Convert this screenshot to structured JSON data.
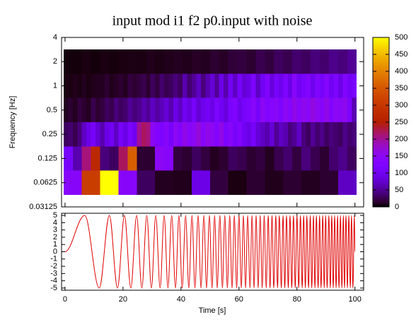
{
  "chart_data": [
    {
      "type": "heatmap",
      "title": "input mod i1 f2 p0.input with noise",
      "ylabel": "Frequency [Hz]",
      "xlim": [
        -1.2,
        103
      ],
      "ylim": [
        0.03125,
        4
      ],
      "log_y": true,
      "yticks": [
        0.03125,
        0.0625,
        0.125,
        0.25,
        0.5,
        1,
        2,
        4
      ],
      "x_extent": [
        -0.5,
        100.5
      ],
      "colormap": "gnuplot",
      "colorbar": {
        "clim": [
          0,
          500
        ],
        "ticks": [
          0,
          50,
          100,
          150,
          200,
          250,
          300,
          350,
          400,
          450,
          500
        ]
      },
      "rows": [
        {
          "y": 2,
          "values": [
            3,
            3,
            5,
            3,
            5,
            4,
            5,
            6,
            5,
            8,
            6,
            8,
            10,
            8,
            12,
            10,
            15,
            12,
            18,
            20,
            15,
            25,
            20,
            30,
            25,
            35,
            30,
            40,
            35,
            45,
            40,
            50
          ]
        },
        {
          "y": 1,
          "values": [
            5,
            5,
            8,
            5,
            10,
            5,
            8,
            10,
            10,
            15,
            8,
            12,
            15,
            10,
            20,
            15,
            20,
            25,
            15,
            30,
            20,
            35,
            25,
            30,
            40,
            30,
            60,
            35,
            50,
            70,
            40,
            60,
            80,
            50,
            90,
            60,
            100,
            70,
            110,
            80,
            90,
            120,
            70,
            100,
            130,
            85,
            110,
            95,
            120,
            90,
            140,
            100,
            115,
            130,
            95,
            125,
            110,
            135,
            100,
            120,
            90,
            130,
            105,
            115
          ]
        },
        {
          "y": 0.5,
          "values": [
            10,
            15,
            10,
            20,
            15,
            10,
            25,
            15,
            20,
            30,
            25,
            40,
            30,
            35,
            50,
            40,
            45,
            60,
            50,
            70,
            55,
            65,
            80,
            60,
            90,
            70,
            100,
            85,
            110,
            80,
            95,
            105,
            90,
            120,
            100,
            85,
            115,
            130,
            95,
            110,
            120,
            140,
            110,
            150,
            125,
            135,
            145,
            120,
            150,
            135,
            160,
            140,
            155,
            145,
            165,
            150,
            140,
            160,
            130,
            150,
            145,
            155,
            120,
            60
          ]
        },
        {
          "y": 0.25,
          "values": [
            30,
            35,
            25,
            40,
            70,
            90,
            110,
            80,
            60,
            90,
            100,
            70,
            110,
            90,
            120,
            100,
            200,
            220,
            210,
            150,
            130,
            120,
            140,
            110,
            150,
            130,
            160,
            140,
            150,
            170,
            140,
            160,
            150,
            130,
            160,
            120,
            140,
            110,
            130,
            100,
            90,
            110,
            80,
            70,
            60,
            80,
            50,
            70,
            60,
            40,
            50,
            70,
            40,
            30,
            50,
            35,
            45,
            30,
            40,
            35,
            30,
            45,
            35,
            40
          ]
        },
        {
          "y": 0.125,
          "values": [
            110,
            60,
            210,
            270,
            40,
            30,
            220,
            360,
            15,
            15,
            150,
            140,
            20,
            15,
            30,
            20,
            10,
            15,
            30,
            25,
            15,
            20,
            10,
            25,
            35,
            20,
            40,
            25,
            15,
            35,
            45,
            30
          ]
        },
        {
          "y": 0.0625,
          "values": [
            140,
            310,
            500,
            140,
            30,
            10,
            8,
            90,
            20,
            5,
            15,
            8,
            15,
            10,
            15,
            70
          ]
        }
      ]
    },
    {
      "type": "line",
      "xlabel": "Time [s]",
      "color": "#e00000",
      "xlim": [
        -1.2,
        103
      ],
      "ylim": [
        -5.3,
        5.3
      ],
      "xticks": [
        0,
        20,
        40,
        60,
        80,
        100
      ],
      "yticks": [
        -5,
        -4,
        -3,
        -2,
        -1,
        0,
        1,
        2,
        3,
        4,
        5
      ],
      "x": [
        0,
        6.8,
        11.8,
        15.3,
        18.1,
        20.5,
        22.7,
        24.7,
        26.5,
        28.2,
        29.8,
        31.3,
        32.8,
        34.2,
        35.5,
        36.8,
        38.1,
        39.3,
        40.4,
        41.6,
        42.7,
        43.8,
        44.8,
        45.9,
        46.9,
        47.9,
        48.8,
        49.8,
        50.7,
        51.6,
        52.5,
        53.4,
        54.3,
        55.1,
        56.0,
        56.8,
        57.6,
        58.4,
        59.2,
        60.0,
        60.8,
        61.5,
        62.3,
        63.0,
        63.8,
        64.5,
        65.2,
        65.9,
        66.6,
        67.3,
        68.0,
        68.7,
        69.4,
        70.1,
        70.7,
        71.4,
        72.0,
        72.7,
        73.3,
        73.9,
        74.6,
        75.2,
        75.8,
        76.4,
        77.0,
        77.6,
        78.2,
        78.8,
        79.4,
        80.0,
        80.6,
        81.2,
        81.8,
        82.3,
        82.9,
        83.4,
        84.0,
        84.6,
        85.1,
        85.7,
        86.2,
        86.7,
        87.3,
        87.8,
        88.3,
        88.9,
        89.4,
        89.9,
        90.4,
        91.0,
        91.5,
        92.0,
        92.5,
        93.0,
        93.5,
        94.0,
        94.5,
        95.0,
        95.5,
        96.0,
        96.4,
        96.9,
        97.4,
        97.9,
        98.4,
        98.8,
        99.3,
        99.8,
        100
      ],
      "values": [
        0,
        5,
        -5,
        5,
        -5,
        5,
        -5,
        5,
        -5,
        5,
        -5,
        5,
        -5,
        5,
        -5,
        5,
        -5,
        5,
        -5,
        5,
        -5,
        5,
        -5,
        5,
        -5,
        5,
        -5,
        5,
        -5,
        5,
        -5,
        5,
        -5,
        5,
        -5,
        5,
        -5,
        5,
        -5,
        5,
        -5,
        5,
        -5,
        5,
        -5,
        5,
        -5,
        5,
        -5,
        5,
        -5,
        5,
        -5,
        5,
        -5,
        5,
        -5,
        5,
        -5,
        5,
        -5,
        5,
        -5,
        5,
        -5,
        5,
        -5,
        5,
        -5,
        5,
        -5,
        5,
        -5,
        5,
        -5,
        5,
        -5,
        5,
        -5,
        5,
        -5,
        5,
        -5,
        5,
        -5,
        5,
        -5,
        5,
        -5,
        5,
        -5,
        5,
        -5,
        5,
        -5,
        5,
        -5,
        5,
        -5,
        5,
        -5,
        5,
        -5,
        5,
        -5,
        5,
        -5,
        5,
        0
      ]
    }
  ]
}
